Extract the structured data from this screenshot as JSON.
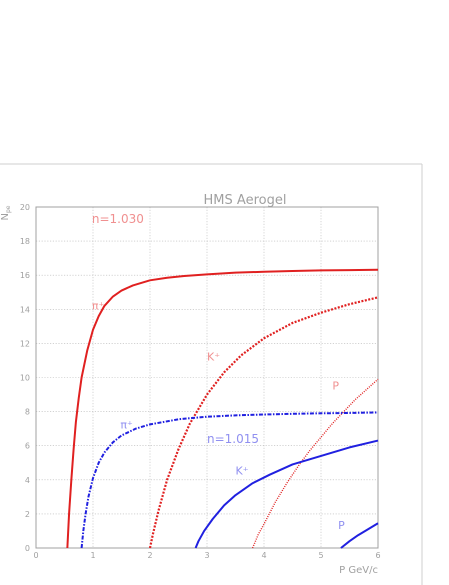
{
  "chart_data": {
    "type": "line",
    "title": "HMS Aerogel",
    "xlabel": "P GeV/c",
    "ylabel": "N",
    "ylabel_sub": "pe",
    "xlim": [
      0,
      6
    ],
    "ylim": [
      0,
      20
    ],
    "xticks": [
      0,
      1,
      2,
      3,
      4,
      5,
      6
    ],
    "yticks": [
      0,
      2,
      4,
      6,
      8,
      10,
      12,
      14,
      16,
      18,
      20
    ],
    "grid": true,
    "series": [
      {
        "name": "π⁺",
        "group": "n=1.030",
        "color": "#e02020",
        "dash": "solid",
        "x": [
          0.55,
          0.58,
          0.62,
          0.66,
          0.7,
          0.75,
          0.8,
          0.9,
          1.0,
          1.1,
          1.2,
          1.35,
          1.5,
          1.7,
          2.0,
          2.3,
          2.6,
          3.0,
          3.5,
          4.0,
          4.5,
          5.0,
          5.5,
          6.0
        ],
        "y": [
          0.0,
          2.0,
          4.0,
          5.8,
          7.4,
          8.8,
          10.0,
          11.6,
          12.8,
          13.6,
          14.2,
          14.75,
          15.1,
          15.4,
          15.7,
          15.85,
          15.95,
          16.05,
          16.15,
          16.2,
          16.25,
          16.28,
          16.3,
          16.32
        ]
      },
      {
        "name": "K⁺",
        "group": "n=1.030",
        "color": "#e02020",
        "dash": "dotted",
        "x": [
          2.0,
          2.05,
          2.15,
          2.3,
          2.5,
          2.7,
          3.0,
          3.3,
          3.6,
          4.0,
          4.5,
          5.0,
          5.5,
          6.0
        ],
        "y": [
          0.0,
          0.8,
          2.2,
          4.0,
          5.8,
          7.3,
          9.0,
          10.3,
          11.3,
          12.3,
          13.2,
          13.8,
          14.3,
          14.7
        ]
      },
      {
        "name": "P",
        "group": "n=1.030",
        "color": "#e02020",
        "dash": "fine",
        "x": [
          3.8,
          3.9,
          4.0,
          4.2,
          4.4,
          4.6,
          4.8,
          5.0,
          5.2,
          5.4,
          5.6,
          5.8,
          6.0
        ],
        "y": [
          0.0,
          0.8,
          1.4,
          2.7,
          3.8,
          4.8,
          5.7,
          6.5,
          7.3,
          8.0,
          8.7,
          9.3,
          9.9
        ]
      },
      {
        "name": "π⁺",
        "group": "n=1.015",
        "color": "#2020e0",
        "dash": "dashdot",
        "x": [
          0.8,
          0.83,
          0.87,
          0.92,
          1.0,
          1.1,
          1.2,
          1.35,
          1.5,
          1.75,
          2.0,
          2.5,
          3.0,
          3.5,
          4.0,
          4.5,
          5.0,
          5.5,
          6.0
        ],
        "y": [
          0.0,
          1.0,
          2.0,
          3.0,
          4.1,
          5.0,
          5.6,
          6.2,
          6.6,
          7.0,
          7.25,
          7.55,
          7.7,
          7.78,
          7.83,
          7.87,
          7.9,
          7.92,
          7.95
        ]
      },
      {
        "name": "K⁺",
        "group": "n=1.015",
        "color": "#2020e0",
        "dash": "solid",
        "x": [
          2.8,
          2.85,
          2.95,
          3.1,
          3.3,
          3.5,
          3.8,
          4.1,
          4.5,
          5.0,
          5.5,
          6.0
        ],
        "y": [
          0.0,
          0.4,
          1.0,
          1.7,
          2.5,
          3.1,
          3.8,
          4.3,
          4.9,
          5.4,
          5.9,
          6.3
        ]
      },
      {
        "name": "P",
        "group": "n=1.015",
        "color": "#2020e0",
        "dash": "solid",
        "x": [
          5.35,
          5.5,
          5.65,
          5.8,
          6.0
        ],
        "y": [
          0.0,
          0.4,
          0.75,
          1.05,
          1.45
        ]
      }
    ],
    "annotations": [
      {
        "text": "n=1.030",
        "x": 0.98,
        "y": 19.05,
        "color": "#f09090",
        "size": 12
      },
      {
        "text": "π⁺",
        "x": 0.98,
        "y": 14.0,
        "color": "#f09090",
        "size": 11
      },
      {
        "text": "K⁺",
        "x": 3.0,
        "y": 11.0,
        "color": "#f09090",
        "size": 11
      },
      {
        "text": "P",
        "x": 5.2,
        "y": 9.3,
        "color": "#f09090",
        "size": 11
      },
      {
        "text": "π⁺",
        "x": 1.48,
        "y": 7.0,
        "color": "#9090f0",
        "size": 11
      },
      {
        "text": "n=1.015",
        "x": 3.0,
        "y": 6.15,
        "color": "#9090f0",
        "size": 12
      },
      {
        "text": "K⁺",
        "x": 3.5,
        "y": 4.3,
        "color": "#9090f0",
        "size": 11
      },
      {
        "text": "P",
        "x": 5.3,
        "y": 1.1,
        "color": "#9090f0",
        "size": 11
      }
    ]
  }
}
